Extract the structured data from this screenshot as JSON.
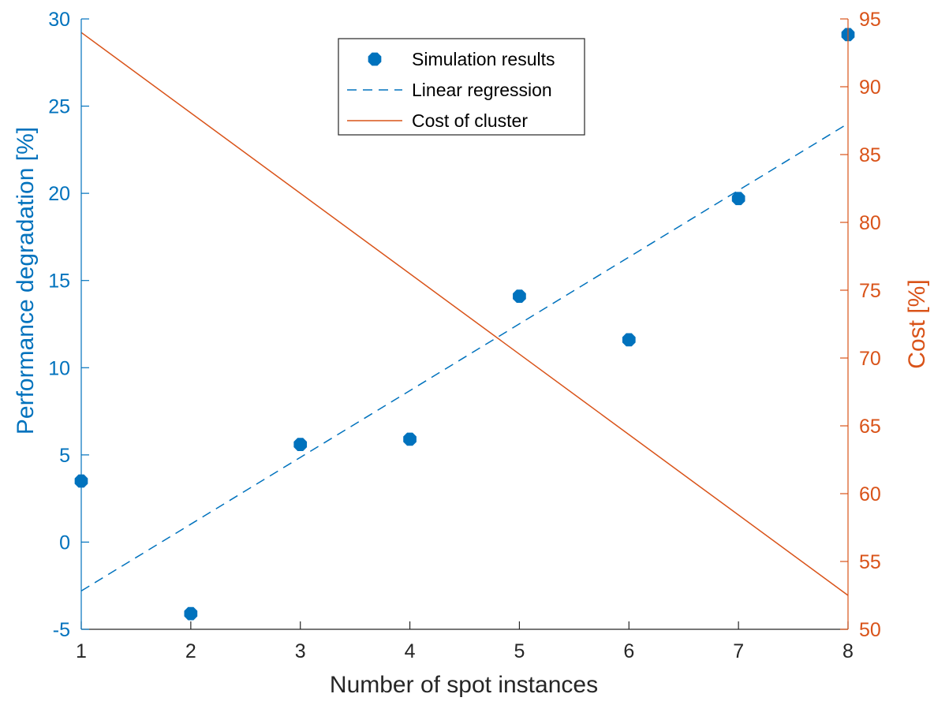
{
  "chart_data": {
    "type": "scatter",
    "x_ticks": [
      1,
      2,
      3,
      4,
      5,
      6,
      7,
      8
    ],
    "xlim": [
      1,
      8
    ],
    "xlabel": "Number of spot instances",
    "y_left": {
      "label": "Performance degradation [%]",
      "lim": [
        -5,
        30
      ],
      "ticks": [
        -5,
        0,
        5,
        10,
        15,
        20,
        25,
        30
      ],
      "color": "#0072BD"
    },
    "y_right": {
      "label": "Cost [%]",
      "lim": [
        50,
        95
      ],
      "ticks": [
        50,
        55,
        60,
        65,
        70,
        75,
        80,
        85,
        90,
        95
      ],
      "color": "#D95319"
    },
    "series": [
      {
        "name": "Simulation results",
        "kind": "markers",
        "axis": "left",
        "color": "#0072BD",
        "x": [
          1,
          2,
          3,
          4,
          5,
          6,
          7,
          8
        ],
        "y": [
          3.5,
          -4.1,
          5.6,
          5.9,
          14.1,
          11.6,
          19.7,
          29.1
        ]
      },
      {
        "name": "Linear regression",
        "kind": "dashed-line",
        "axis": "left",
        "color": "#0072BD",
        "x": [
          1,
          8
        ],
        "y": [
          -2.8,
          24.0
        ]
      },
      {
        "name": "Cost of cluster",
        "kind": "solid-line",
        "axis": "right",
        "color": "#D95319",
        "x": [
          1,
          8
        ],
        "y": [
          94.0,
          52.5
        ]
      }
    ],
    "legend_position": "top-center",
    "grid": false
  }
}
